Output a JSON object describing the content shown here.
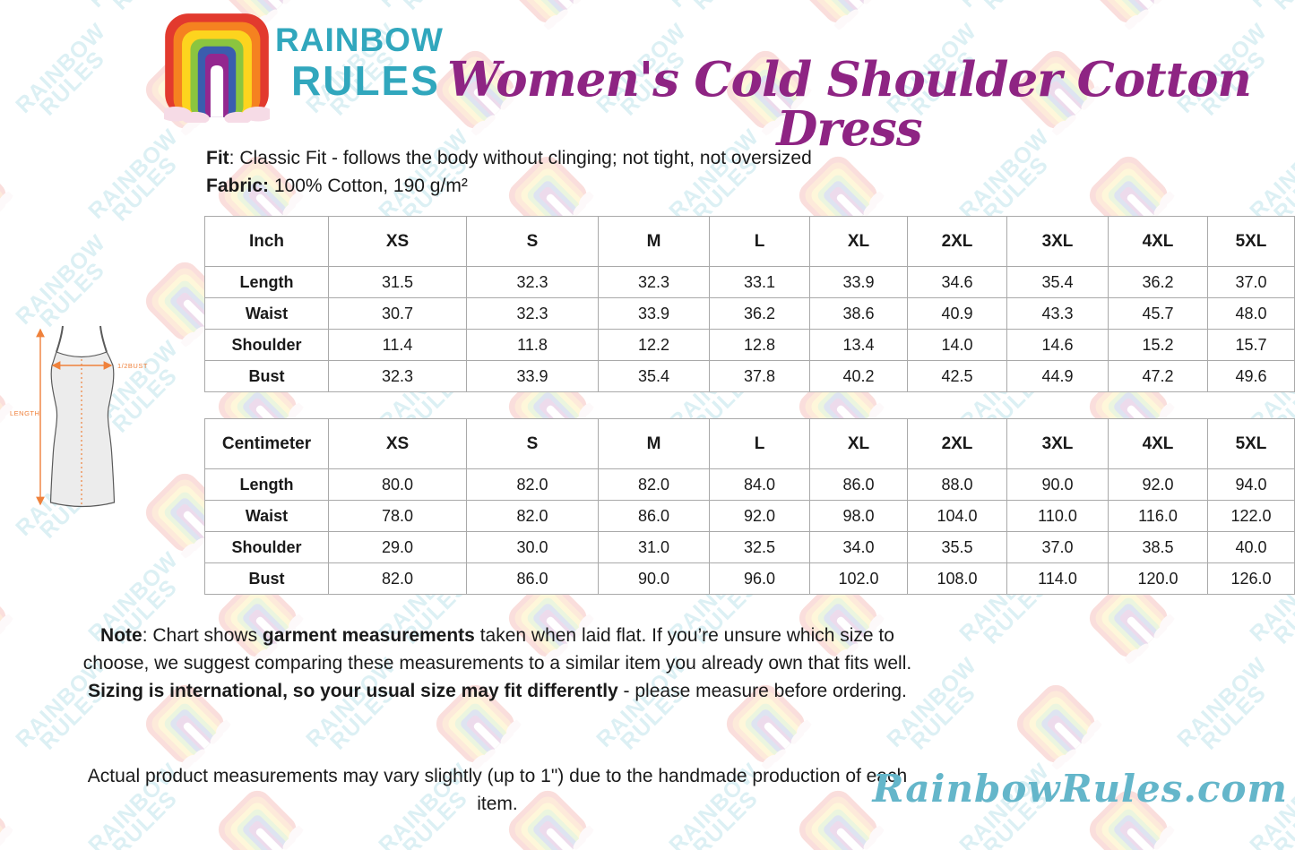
{
  "logo": {
    "brand_line1": "RAINBOW",
    "brand_line2": "RULES"
  },
  "header": {
    "title": "Women's Cold Shoulder Cotton Dress"
  },
  "product": {
    "fit_label": "Fit",
    "fit_text": ": Classic Fit - follows the body without clinging; not tight, not oversized",
    "fabric_label": "Fabric:",
    "fabric_text": " 100% Cotton, 190 g/m²"
  },
  "size_chart": {
    "sizes": [
      "XS",
      "S",
      "M",
      "L",
      "XL",
      "2XL",
      "3XL",
      "4XL",
      "5XL"
    ],
    "tables": [
      {
        "unit_label": "Inch",
        "rows": [
          {
            "label": "Length",
            "values": [
              "31.5",
              "32.3",
              "32.3",
              "33.1",
              "33.9",
              "34.6",
              "35.4",
              "36.2",
              "37.0"
            ]
          },
          {
            "label": "Waist",
            "values": [
              "30.7",
              "32.3",
              "33.9",
              "36.2",
              "38.6",
              "40.9",
              "43.3",
              "45.7",
              "48.0"
            ]
          },
          {
            "label": "Shoulder",
            "values": [
              "11.4",
              "11.8",
              "12.2",
              "12.8",
              "13.4",
              "14.0",
              "14.6",
              "15.2",
              "15.7"
            ]
          },
          {
            "label": "Bust",
            "values": [
              "32.3",
              "33.9",
              "35.4",
              "37.8",
              "40.2",
              "42.5",
              "44.9",
              "47.2",
              "49.6"
            ]
          }
        ]
      },
      {
        "unit_label": "Centimeter",
        "rows": [
          {
            "label": "Length",
            "values": [
              "80.0",
              "82.0",
              "82.0",
              "84.0",
              "86.0",
              "88.0",
              "90.0",
              "92.0",
              "94.0"
            ]
          },
          {
            "label": "Waist",
            "values": [
              "78.0",
              "82.0",
              "86.0",
              "92.0",
              "98.0",
              "104.0",
              "110.0",
              "116.0",
              "122.0"
            ]
          },
          {
            "label": "Shoulder",
            "values": [
              "29.0",
              "30.0",
              "31.0",
              "32.5",
              "34.0",
              "35.5",
              "37.0",
              "38.5",
              "40.0"
            ]
          },
          {
            "label": "Bust",
            "values": [
              "82.0",
              "86.0",
              "90.0",
              "96.0",
              "102.0",
              "108.0",
              "114.0",
              "120.0",
              "126.0"
            ]
          }
        ]
      }
    ]
  },
  "diagram": {
    "length_label": "LENGTH",
    "bust_label": "1/2BUST"
  },
  "notes": {
    "note_segments": [
      {
        "text": "Note",
        "bold": true
      },
      {
        "text": ": Chart shows ",
        "bold": false
      },
      {
        "text": "garment measurements",
        "bold": true
      },
      {
        "text": " taken when laid flat. If you’re unsure which size to choose, we suggest comparing these measurements to a similar item you already own that fits well. ",
        "bold": false
      },
      {
        "text": "Sizing is international, so your usual size may fit differently",
        "bold": true
      },
      {
        "text": " - please measure before ordering.",
        "bold": false
      }
    ],
    "production_note": "Actual product measurements may vary slightly (up to 1\") due to the handmade production of each item."
  },
  "footer": {
    "site": "RainbowRules.com"
  },
  "watermark": {
    "line1": "RAINBOW",
    "line2": "RULES"
  },
  "colors": {
    "title_purple": "#8e2483",
    "brand_teal": "#31a7bd",
    "site_blue": "#64b6ca",
    "measure_orange": "#ef813b",
    "table_border": "#a9a9a9"
  }
}
